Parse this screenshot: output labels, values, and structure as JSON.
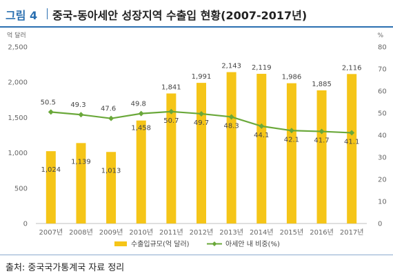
{
  "figure": {
    "label": "그림 4",
    "title": "중국-동아세안 성장지역 수출입 현황(2007-2017년)",
    "source": "출처: 중국국가통계국 자료 정리"
  },
  "colors": {
    "bar": "#f5c518",
    "line": "#6aa83a",
    "accent": "#2a6fb0"
  },
  "chart_data": {
    "type": "bar",
    "categories": [
      "2007년",
      "2008년",
      "2009년",
      "2010년",
      "2011년",
      "2012년",
      "2013년",
      "2014년",
      "2015년",
      "2016년",
      "2017년"
    ],
    "series": [
      {
        "name": "수출입규모(억 달러)",
        "type": "bar",
        "axis": "left",
        "values": [
          1024,
          1139,
          1013,
          1458,
          1841,
          1991,
          2143,
          2119,
          1986,
          1885,
          2116
        ]
      },
      {
        "name": "아세안 내 비중(%)",
        "type": "line",
        "axis": "right",
        "values": [
          50.5,
          49.3,
          47.6,
          49.8,
          50.7,
          49.7,
          48.3,
          44.1,
          42.1,
          41.7,
          41.1
        ]
      }
    ],
    "ylabel_left": "억 달러",
    "ylabel_right": "%",
    "ylim_left": [
      0,
      2500
    ],
    "ylim_right": [
      0,
      80
    ],
    "yticks_left": [
      "0",
      "500",
      "1,000",
      "1,500",
      "2,000",
      "2,500"
    ],
    "yticks_right": [
      "0",
      "10",
      "20",
      "30",
      "40",
      "50",
      "60",
      "70",
      "80"
    ],
    "bar_labels": [
      "1,024",
      "1,139",
      "1,013",
      "1,458",
      "1,841",
      "1,991",
      "2,143",
      "2,119",
      "1,986",
      "1,885",
      "2,116"
    ],
    "line_labels": [
      "50.5",
      "49.3",
      "47.6",
      "49.8",
      "50.7",
      "49.7",
      "48.3",
      "44.1",
      "42.1",
      "41.7",
      "41.1"
    ],
    "legend_position": "bottom",
    "grid": false
  }
}
